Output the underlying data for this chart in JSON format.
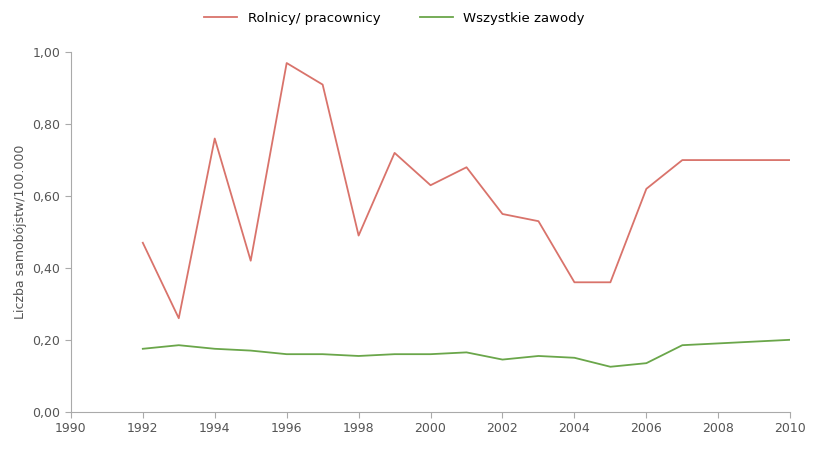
{
  "title": "",
  "ylabel": "Liczba samobójstw/100.000",
  "legend_farmers": "Rolnicy/ pracownicy",
  "legend_all": "Wszystkie zawody",
  "farmers_x": [
    1992,
    1993,
    1994,
    1995,
    1996,
    1997,
    1998,
    1999,
    2000,
    2001,
    2002,
    2003,
    2004,
    2005,
    2006,
    2007,
    2010
  ],
  "farmers_y": [
    0.47,
    0.26,
    0.76,
    0.42,
    0.97,
    0.91,
    0.49,
    0.72,
    0.63,
    0.68,
    0.55,
    0.53,
    0.36,
    0.36,
    0.62,
    0.7,
    0.7
  ],
  "all_x": [
    1992,
    1993,
    1994,
    1995,
    1996,
    1997,
    1998,
    1999,
    2000,
    2001,
    2002,
    2003,
    2004,
    2005,
    2006,
    2007,
    2010
  ],
  "all_y": [
    0.175,
    0.185,
    0.175,
    0.17,
    0.16,
    0.16,
    0.155,
    0.16,
    0.16,
    0.165,
    0.145,
    0.155,
    0.15,
    0.125,
    0.135,
    0.185,
    0.2
  ],
  "farmers_color": "#d9736b",
  "all_color": "#6aa64a",
  "xlim": [
    1990,
    2010
  ],
  "ylim": [
    0.0,
    1.0
  ],
  "xticks": [
    1990,
    1992,
    1994,
    1996,
    1998,
    2000,
    2002,
    2004,
    2006,
    2008,
    2010
  ],
  "yticks": [
    0.0,
    0.2,
    0.4,
    0.6,
    0.8,
    1.0
  ],
  "background_color": "#ffffff",
  "line_width": 1.3,
  "spine_color": "#aaaaaa",
  "tick_color": "#555555",
  "tick_label_size": 9,
  "ylabel_size": 9
}
